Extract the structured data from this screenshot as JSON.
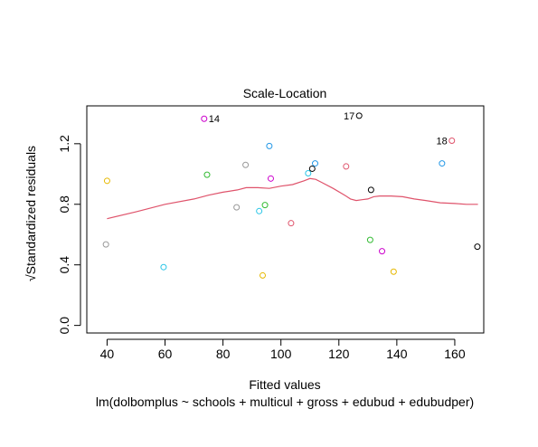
{
  "chart_data": {
    "type": "scatter",
    "title": "Scale-Location",
    "xlabel": "Fitted values",
    "subtitle": "lm(dolbomplus ~ schools + multicul + gross + edubud + edubudper)",
    "ylabel": "√Standardized residuals",
    "xlim": [
      33,
      170
    ],
    "ylim": [
      -0.05,
      1.45
    ],
    "x_ticks": [
      40,
      60,
      80,
      100,
      120,
      140,
      160
    ],
    "y_ticks": [
      0.0,
      0.4,
      0.8,
      1.2
    ],
    "x_tick_labels": [
      "40",
      "60",
      "80",
      "100",
      "120",
      "140",
      "160"
    ],
    "y_tick_labels": [
      "0.0",
      "0.4",
      "0.8",
      "1.2"
    ],
    "points": [
      {
        "x": 40.0,
        "y": 0.955,
        "color": "#e6b800"
      },
      {
        "x": 39.6,
        "y": 0.535,
        "color": "#999999"
      },
      {
        "x": 59.5,
        "y": 0.385,
        "color": "#29c5e6"
      },
      {
        "x": 73.5,
        "y": 1.365,
        "color": "#cc00cc",
        "label": "14"
      },
      {
        "x": 74.5,
        "y": 0.995,
        "color": "#33bb33"
      },
      {
        "x": 84.7,
        "y": 0.78,
        "color": "#999999"
      },
      {
        "x": 87.8,
        "y": 1.06,
        "color": "#999999"
      },
      {
        "x": 92.5,
        "y": 0.755,
        "color": "#29c5e6"
      },
      {
        "x": 93.7,
        "y": 0.33,
        "color": "#e6b800"
      },
      {
        "x": 94.5,
        "y": 0.795,
        "color": "#33bb33"
      },
      {
        "x": 96.0,
        "y": 1.185,
        "color": "#2297e6"
      },
      {
        "x": 96.5,
        "y": 0.97,
        "color": "#cc00cc"
      },
      {
        "x": 103.5,
        "y": 0.675,
        "color": "#df536b"
      },
      {
        "x": 109.4,
        "y": 1.005,
        "color": "#29c5e6"
      },
      {
        "x": 110.8,
        "y": 1.035,
        "color": "#000000"
      },
      {
        "x": 111.8,
        "y": 1.07,
        "color": "#2297e6"
      },
      {
        "x": 122.5,
        "y": 1.05,
        "color": "#df536b"
      },
      {
        "x": 127.0,
        "y": 1.385,
        "color": "#000000",
        "label": "17"
      },
      {
        "x": 130.8,
        "y": 0.565,
        "color": "#33bb33"
      },
      {
        "x": 131.1,
        "y": 0.895,
        "color": "#000000"
      },
      {
        "x": 134.9,
        "y": 0.49,
        "color": "#cc00cc"
      },
      {
        "x": 138.9,
        "y": 0.355,
        "color": "#e6b800"
      },
      {
        "x": 155.6,
        "y": 1.07,
        "color": "#2297e6"
      },
      {
        "x": 159.0,
        "y": 1.22,
        "color": "#df536b",
        "label": "18"
      },
      {
        "x": 167.8,
        "y": 0.52,
        "color": "#000000"
      }
    ],
    "smooth_line": {
      "color": "#df536b",
      "x": [
        40,
        50,
        60,
        70,
        75,
        80,
        85,
        88,
        92,
        96,
        100,
        104,
        108,
        110,
        112,
        114,
        118,
        122,
        124,
        126,
        128,
        130,
        132,
        134,
        138,
        142,
        146,
        150,
        155,
        160,
        164,
        168
      ],
      "y": [
        0.705,
        0.75,
        0.8,
        0.835,
        0.86,
        0.88,
        0.895,
        0.91,
        0.91,
        0.905,
        0.92,
        0.93,
        0.955,
        0.97,
        0.965,
        0.945,
        0.905,
        0.86,
        0.835,
        0.825,
        0.83,
        0.835,
        0.85,
        0.855,
        0.855,
        0.85,
        0.835,
        0.825,
        0.81,
        0.805,
        0.8,
        0.8
      ]
    }
  }
}
